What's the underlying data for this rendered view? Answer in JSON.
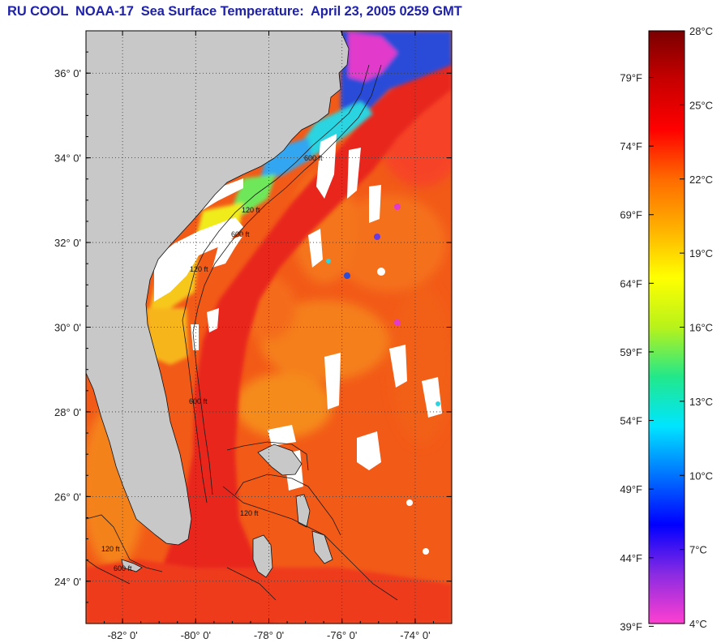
{
  "title": "RU COOL  NOAA-17  Sea Surface Temperature:  April 23, 2005 0259 GMT",
  "map": {
    "lat_labels": [
      {
        "lat": 36,
        "text": "36° 0'"
      },
      {
        "lat": 34,
        "text": "34° 0'"
      },
      {
        "lat": 32,
        "text": "32° 0'"
      },
      {
        "lat": 30,
        "text": "30° 0'"
      },
      {
        "lat": 28,
        "text": "28° 0'"
      },
      {
        "lat": 26,
        "text": "26° 0'"
      },
      {
        "lat": 24,
        "text": "24° 0'"
      }
    ],
    "lon_labels": [
      {
        "lon": -82,
        "text": "-82° 0'"
      },
      {
        "lon": -80,
        "text": "-80° 0'"
      },
      {
        "lon": -78,
        "text": "-78° 0'"
      },
      {
        "lon": -76,
        "text": "-76° 0'"
      },
      {
        "lon": -74,
        "text": "-74° 0'"
      }
    ],
    "lat_range": [
      23.0,
      37.0
    ],
    "lon_range": [
      -83.0,
      -73.0
    ],
    "grid": "dotted",
    "isobath_labels": [
      "120 ft",
      "600 ft",
      "120 ft",
      "600 ft",
      "120 ft",
      "600 ft",
      "120 ft",
      "600 ft"
    ],
    "colors": {
      "land": "#c8c8c8",
      "cloud": "#ffffff",
      "gulf_stream": "#e8271c",
      "offshore": "#f25a18",
      "shelf_cool": "#f6d012"
    }
  },
  "colorbar": {
    "celsius": [
      {
        "value": 28,
        "text": "28°C"
      },
      {
        "value": 25,
        "text": "25°C"
      },
      {
        "value": 22,
        "text": "22°C"
      },
      {
        "value": 19,
        "text": "19°C"
      },
      {
        "value": 16,
        "text": "16°C"
      },
      {
        "value": 13,
        "text": "13°C"
      },
      {
        "value": 10,
        "text": "10°C"
      },
      {
        "value": 7,
        "text": "7°C"
      },
      {
        "value": 4,
        "text": "4°C"
      }
    ],
    "fahrenheit": [
      {
        "value": 79,
        "text": "79°F"
      },
      {
        "value": 74,
        "text": "74°F"
      },
      {
        "value": 69,
        "text": "69°F"
      },
      {
        "value": 64,
        "text": "64°F"
      },
      {
        "value": 59,
        "text": "59°F"
      },
      {
        "value": 54,
        "text": "54°F"
      },
      {
        "value": 49,
        "text": "49°F"
      },
      {
        "value": 44,
        "text": "44°F"
      },
      {
        "value": 39,
        "text": "39°F"
      }
    ],
    "range_c": [
      4,
      28
    ],
    "stops": [
      "#ff3fd0",
      "#8a2be2",
      "#0000ff",
      "#0073ff",
      "#00e5ff",
      "#22e88a",
      "#b8f21a",
      "#ffff00",
      "#ffb000",
      "#ff6a00",
      "#ff0000",
      "#c80000",
      "#7a0000"
    ]
  }
}
